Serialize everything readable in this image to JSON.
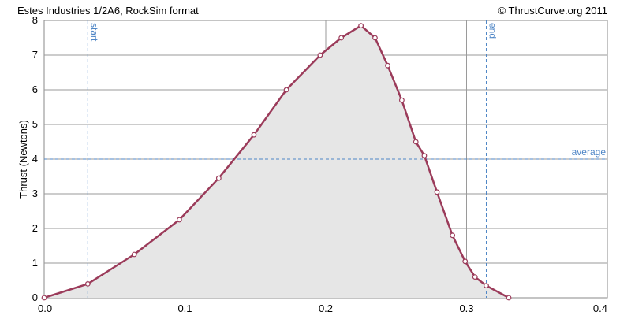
{
  "header": {
    "left_title": "Estes Industries 1/2A6, RockSim format",
    "right_credit": "© ThrustCurve.org 2011"
  },
  "chart_data": {
    "type": "area",
    "ylabel": "Thrust (Newtons)",
    "xlabel": "",
    "xlim": [
      0.0,
      0.4
    ],
    "ylim": [
      0,
      8
    ],
    "x_ticks": [
      "0.0",
      "0.1",
      "0.2",
      "0.3",
      "0.4"
    ],
    "y_ticks": [
      "0",
      "1",
      "2",
      "3",
      "4",
      "5",
      "6",
      "7",
      "8"
    ],
    "grid": true,
    "series": [
      {
        "x": [
          0.0,
          0.031,
          0.064,
          0.096,
          0.124,
          0.149,
          0.172,
          0.196,
          0.211,
          0.225,
          0.235,
          0.244,
          0.254,
          0.264,
          0.27,
          0.279,
          0.29,
          0.299,
          0.306,
          0.314,
          0.33
        ],
        "y": [
          0.0,
          0.4,
          1.25,
          2.25,
          3.45,
          4.7,
          6.0,
          7.0,
          7.5,
          7.85,
          7.5,
          6.7,
          5.7,
          4.5,
          4.1,
          3.05,
          1.8,
          1.05,
          0.6,
          0.35,
          0.0
        ]
      }
    ],
    "markers": [
      {
        "label": "start",
        "x": 0.031,
        "orientation": "vertical"
      },
      {
        "label": "end",
        "x": 0.314,
        "orientation": "vertical"
      },
      {
        "label": "average",
        "y": 4.0,
        "orientation": "horizontal"
      }
    ],
    "colors": {
      "line": "#9b3b5a",
      "fill": "#e6e6e6",
      "marker": "#4f86c6",
      "grid": "#9a9a9a"
    }
  }
}
